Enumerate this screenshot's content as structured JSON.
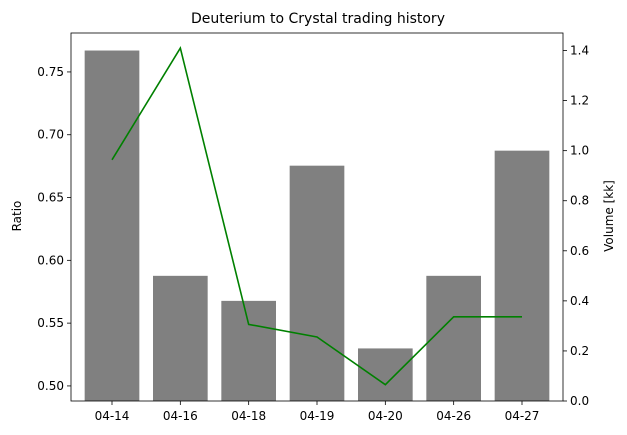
{
  "chart_data": {
    "type": "bar",
    "title": "Deuterium to Crystal trading history",
    "xlabel": "",
    "ylabel": "Ratio",
    "y2label": "Volume [kk]",
    "categories": [
      "04-14",
      "04-16",
      "04-18",
      "04-19",
      "04-20",
      "04-26",
      "04-27"
    ],
    "series": [
      {
        "type": "bar",
        "axis": "right",
        "values": [
          1.4,
          0.5,
          0.4,
          0.94,
          0.21,
          0.5,
          1.0
        ],
        "color": "#808080"
      },
      {
        "type": "line",
        "axis": "left",
        "values": [
          0.68,
          0.769,
          0.549,
          0.539,
          0.501,
          0.555,
          0.555
        ],
        "color": "#008000"
      }
    ],
    "ylim": [
      0.488,
      0.781
    ],
    "y2lim": [
      0.0,
      1.47
    ],
    "yticks": [
      0.5,
      0.55,
      0.6,
      0.65,
      0.7,
      0.75
    ],
    "y2ticks": [
      0.0,
      0.2,
      0.4,
      0.6,
      0.8,
      1.0,
      1.2,
      1.4
    ],
    "ytick_labels": [
      "0.50",
      "0.55",
      "0.60",
      "0.65",
      "0.70",
      "0.75"
    ],
    "y2tick_labels": [
      "0.0",
      "0.2",
      "0.4",
      "0.6",
      "0.8",
      "1.0",
      "1.2",
      "1.4"
    ],
    "grid": false
  }
}
